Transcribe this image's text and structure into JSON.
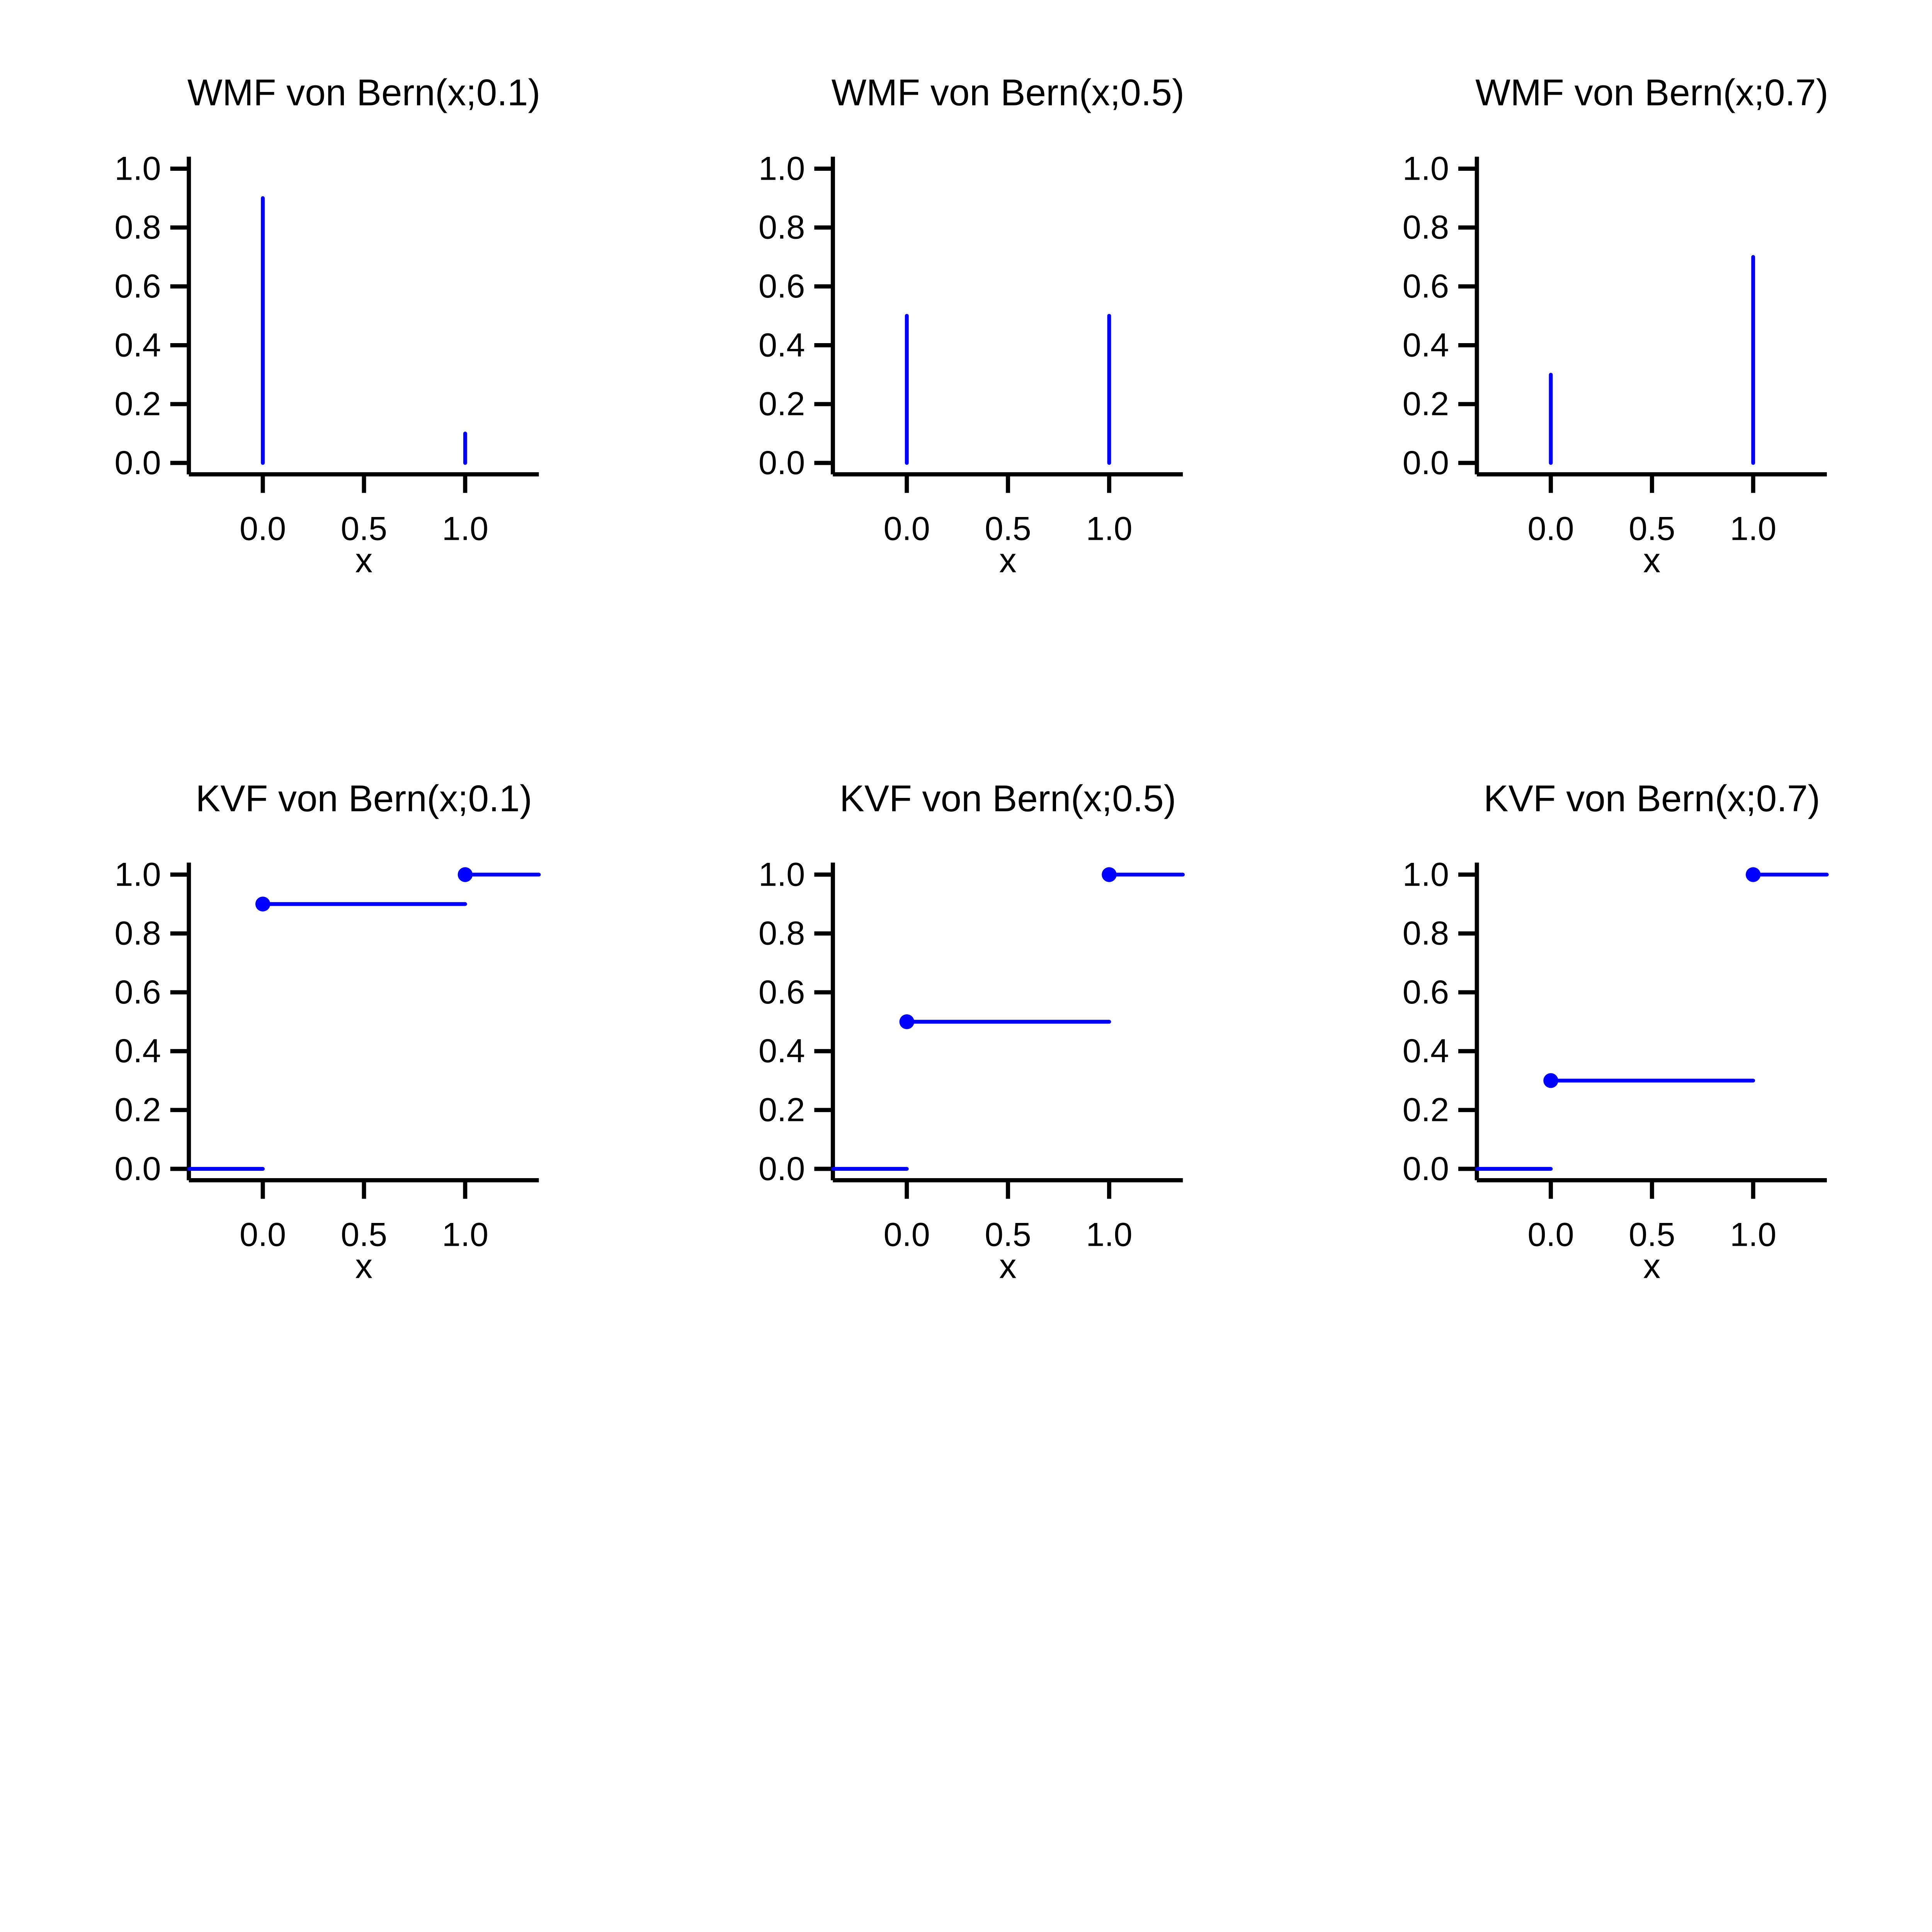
{
  "figure": {
    "background": "#ffffff",
    "accent_color": "#0000ff",
    "axis_color": "#000000",
    "text_color": "#000000",
    "xlabel": "x",
    "grid": false,
    "legend": "none",
    "x_ticks": [
      {
        "v": 0.0,
        "label": "0.0"
      },
      {
        "v": 0.5,
        "label": "0.5"
      },
      {
        "v": 1.0,
        "label": "1.0"
      }
    ],
    "y_ticks": [
      {
        "v": 0.0,
        "label": "0.0"
      },
      {
        "v": 0.2,
        "label": "0.2"
      },
      {
        "v": 0.4,
        "label": "0.4"
      },
      {
        "v": 0.6,
        "label": "0.6"
      },
      {
        "v": 0.8,
        "label": "0.8"
      },
      {
        "v": 1.0,
        "label": "1.0"
      }
    ],
    "xlim": [
      -0.364,
      1.364
    ],
    "ylim": [
      -0.04,
      1.04
    ]
  },
  "chart_data": [
    {
      "type": "stem",
      "row": 0,
      "col": 0,
      "title": "WMF von Bern(x;0.1)",
      "xlabel": "x",
      "param_p": 0.1,
      "x": [
        0,
        1
      ],
      "y": [
        0.9,
        0.1
      ]
    },
    {
      "type": "stem",
      "row": 0,
      "col": 1,
      "title": "WMF von Bern(x;0.5)",
      "xlabel": "x",
      "param_p": 0.5,
      "x": [
        0,
        1
      ],
      "y": [
        0.5,
        0.5
      ]
    },
    {
      "type": "stem",
      "row": 0,
      "col": 2,
      "title": "WMF von Bern(x;0.7)",
      "xlabel": "x",
      "param_p": 0.7,
      "x": [
        0,
        1
      ],
      "y": [
        0.3,
        0.7
      ]
    },
    {
      "type": "step",
      "row": 1,
      "col": 0,
      "title": "KVF von Bern(x;0.1)",
      "xlabel": "x",
      "param_p": 0.1,
      "segments": [
        {
          "x1": -0.4,
          "x2": 0.0,
          "y": 0.0
        },
        {
          "x1": 0.0,
          "x2": 1.0,
          "y": 0.9
        },
        {
          "x1": 1.0,
          "x2": 1.4,
          "y": 1.0
        }
      ],
      "dots": [
        {
          "x": 0.0,
          "y": 0.9
        },
        {
          "x": 1.0,
          "y": 1.0
        }
      ]
    },
    {
      "type": "step",
      "row": 1,
      "col": 1,
      "title": "KVF von Bern(x;0.5)",
      "xlabel": "x",
      "param_p": 0.5,
      "segments": [
        {
          "x1": -0.4,
          "x2": 0.0,
          "y": 0.0
        },
        {
          "x1": 0.0,
          "x2": 1.0,
          "y": 0.5
        },
        {
          "x1": 1.0,
          "x2": 1.4,
          "y": 1.0
        }
      ],
      "dots": [
        {
          "x": 0.0,
          "y": 0.5
        },
        {
          "x": 1.0,
          "y": 1.0
        }
      ]
    },
    {
      "type": "step",
      "row": 1,
      "col": 2,
      "title": "KVF von Bern(x;0.7)",
      "xlabel": "x",
      "param_p": 0.7,
      "segments": [
        {
          "x1": -0.4,
          "x2": 0.0,
          "y": 0.0
        },
        {
          "x1": 0.0,
          "x2": 1.0,
          "y": 0.3
        },
        {
          "x1": 1.0,
          "x2": 1.4,
          "y": 1.0
        }
      ],
      "dots": [
        {
          "x": 0.0,
          "y": 0.3
        },
        {
          "x": 1.0,
          "y": 1.0
        }
      ]
    }
  ]
}
